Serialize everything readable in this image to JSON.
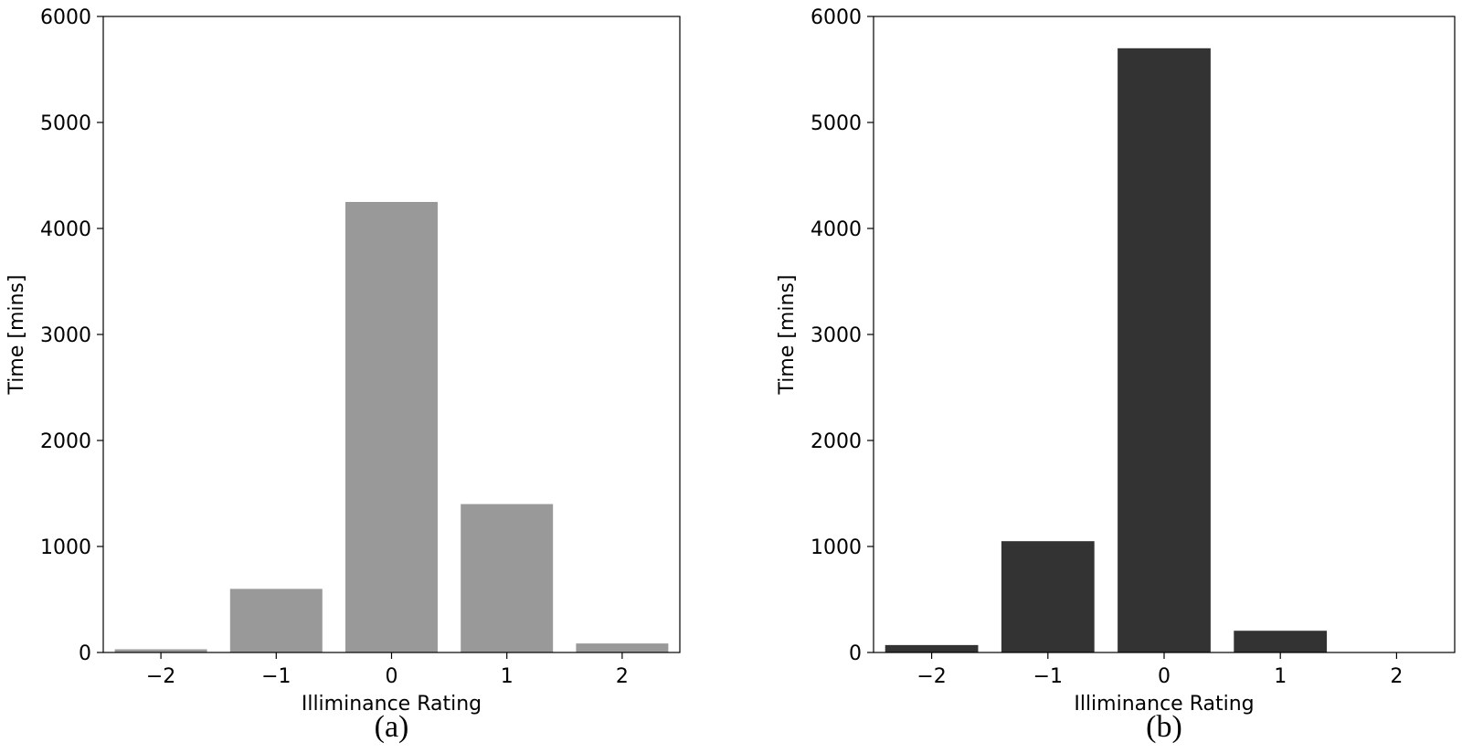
{
  "chart_data": [
    {
      "type": "bar",
      "caption": "(a)",
      "categories": [
        "−2",
        "−1",
        "0",
        "1",
        "2"
      ],
      "values": [
        30,
        600,
        4250,
        1400,
        85
      ],
      "xlabel": "Illiminance Rating",
      "ylabel": "Time [mins]",
      "ylim": [
        0,
        6000
      ],
      "yticks": [
        "0",
        "1000",
        "2000",
        "3000",
        "4000",
        "5000",
        "6000"
      ],
      "bar_color": "#999999",
      "grid": false
    },
    {
      "type": "bar",
      "caption": "(b)",
      "categories": [
        "−2",
        "−1",
        "0",
        "1",
        "2"
      ],
      "values": [
        70,
        1050,
        5700,
        205,
        0
      ],
      "xlabel": "Illiminance Rating",
      "ylabel": "Time [mins]",
      "ylim": [
        0,
        6000
      ],
      "yticks": [
        "0",
        "1000",
        "2000",
        "3000",
        "4000",
        "5000",
        "6000"
      ],
      "bar_color": "#333333",
      "grid": false
    }
  ]
}
